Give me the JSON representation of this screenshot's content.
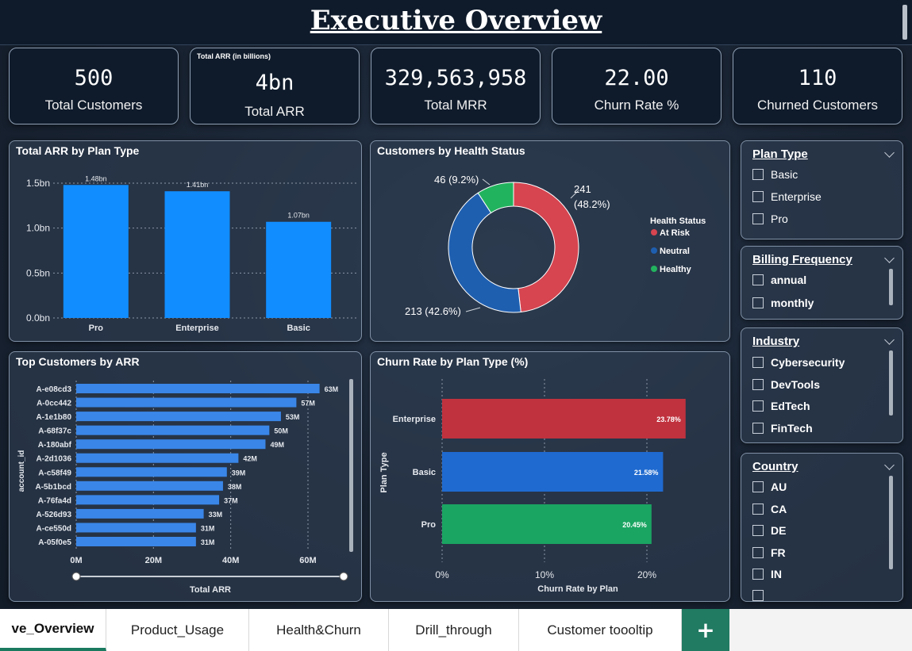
{
  "header": {
    "title": "Executive Overview"
  },
  "kpis": [
    {
      "value": "500",
      "label": "Total Customers"
    },
    {
      "small_title": "Total ARR (in billions)",
      "value": "4bn",
      "label": "Total ARR"
    },
    {
      "value": "329,563,958",
      "label": "Total MRR"
    },
    {
      "value": "22.00",
      "label": "Churn Rate %"
    },
    {
      "value": "110",
      "label": "Churned Customers"
    }
  ],
  "arr_by_plan": {
    "title": "Total ARR by Plan Type",
    "chart_data": {
      "type": "bar",
      "categories": [
        "Pro",
        "Enterprise",
        "Basic"
      ],
      "values": [
        1.48,
        1.41,
        1.07
      ],
      "data_labels": [
        "1.48bn",
        "1.41bn",
        "1.07bn"
      ],
      "yticks": [
        "0.0bn",
        "0.5bn",
        "1.0bn",
        "1.5bn"
      ],
      "ylim": [
        0,
        1.6
      ],
      "color": "#118dff"
    }
  },
  "health_status": {
    "title": "Customers by Health Status",
    "chart_data": {
      "type": "pie",
      "variant": "donut",
      "legend_title": "Health Status",
      "slices": [
        {
          "name": "At Risk",
          "value": 241,
          "label_line1": "241",
          "label_line2": "(48.2%)",
          "color": "#d64550"
        },
        {
          "name": "Neutral",
          "value": 213,
          "label_line1": "213 (42.6%)",
          "color": "#1f5fb0"
        },
        {
          "name": "Healthy",
          "value": 46,
          "label_line1": "46 (9.2%)",
          "color": "#22b35e"
        }
      ]
    }
  },
  "top_customers": {
    "title": "Top Customers by ARR",
    "chart_data": {
      "type": "bar",
      "orientation": "horizontal",
      "categories": [
        "A-e08cd3",
        "A-0cc442",
        "A-1e1b80",
        "A-68f37c",
        "A-180abf",
        "A-2d1036",
        "A-c58f49",
        "A-5b1bcd",
        "A-76fa4d",
        "A-526d93",
        "A-ce550d",
        "A-05f0e5"
      ],
      "values": [
        63,
        57,
        53,
        50,
        49,
        42,
        39,
        38,
        37,
        33,
        31,
        31
      ],
      "data_labels": [
        "63M",
        "57M",
        "53M",
        "50M",
        "49M",
        "42M",
        "39M",
        "38M",
        "37M",
        "33M",
        "31M",
        "31M"
      ],
      "xticks": [
        "0M",
        "20M",
        "40M",
        "60M"
      ],
      "xlim": [
        0,
        65
      ],
      "xlabel": "Total ARR",
      "ylabel": "account_id",
      "color": "#3a86e8"
    }
  },
  "churn_by_plan": {
    "title": "Churn Rate by Plan Type (%)",
    "chart_data": {
      "type": "bar",
      "orientation": "horizontal",
      "categories": [
        "Enterprise",
        "Basic",
        "Pro"
      ],
      "values": [
        23.78,
        21.58,
        20.45
      ],
      "data_labels": [
        "23.78%",
        "21.58%",
        "20.45%"
      ],
      "colors": [
        "#c0323e",
        "#1f6ad0",
        "#1aa562"
      ],
      "xticks": [
        "0%",
        "10%",
        "20%"
      ],
      "xlim": [
        0,
        28
      ],
      "xlabel": "Churn Rate by Plan",
      "ylabel": "Plan Type"
    }
  },
  "slicers": {
    "plan_type": {
      "title": "Plan Type",
      "options": [
        "Basic",
        "Enterprise",
        "Pro"
      ]
    },
    "billing": {
      "title": "Billing Frequency",
      "options": [
        "annual",
        "monthly"
      ]
    },
    "industry": {
      "title": "Industry",
      "options": [
        "Cybersecurity",
        "DevTools",
        "EdTech",
        "FinTech"
      ]
    },
    "country": {
      "title": "Country",
      "options": [
        "AU",
        "CA",
        "DE",
        "FR",
        "IN"
      ]
    }
  },
  "tabs": [
    {
      "label": "ve_Overview",
      "active": true
    },
    {
      "label": "Product_Usage"
    },
    {
      "label": "Health&Churn"
    },
    {
      "label": "Drill_through"
    },
    {
      "label": "Customer toooltip"
    }
  ],
  "tab_add": "+"
}
